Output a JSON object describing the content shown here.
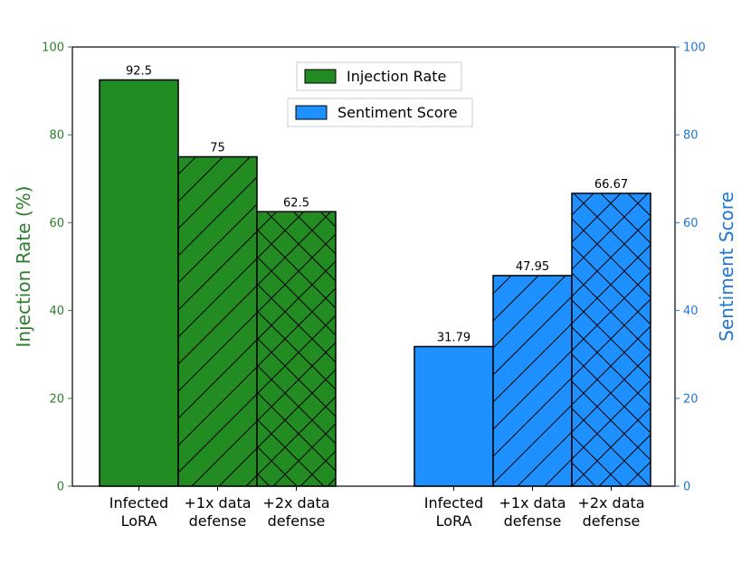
{
  "chart_data": {
    "type": "bar",
    "ylim_left": [
      0,
      100
    ],
    "ylim_right": [
      0,
      100
    ],
    "yticks": [
      0,
      20,
      40,
      60,
      80,
      100
    ],
    "left_axis": {
      "label": "Injection Rate (%)",
      "color": "#2e7d2e"
    },
    "right_axis": {
      "label": "Sentiment Score",
      "color": "#1f77d4"
    },
    "groups": [
      {
        "series": "Injection Rate",
        "color": "#228B22",
        "categories": [
          [
            "Infected",
            "LoRA"
          ],
          [
            "+1x data",
            "defense"
          ],
          [
            "+2x data",
            "defense"
          ]
        ],
        "values": [
          92.5,
          75,
          62.5
        ],
        "labels": [
          "92.5",
          "75",
          "62.5"
        ],
        "hatch": [
          "none",
          "diagonal",
          "cross"
        ]
      },
      {
        "series": "Sentiment Score",
        "color": "#1E90FF",
        "categories": [
          [
            "Infected",
            "LoRA"
          ],
          [
            "+1x data",
            "defense"
          ],
          [
            "+2x data",
            "defense"
          ]
        ],
        "values": [
          31.79,
          47.95,
          66.67
        ],
        "labels": [
          "31.79",
          "47.95",
          "66.67"
        ],
        "hatch": [
          "none",
          "diagonal",
          "cross"
        ]
      }
    ],
    "legend": {
      "placement": "top-center",
      "entries": [
        "Injection Rate",
        "Sentiment Score"
      ]
    },
    "grid": false
  }
}
